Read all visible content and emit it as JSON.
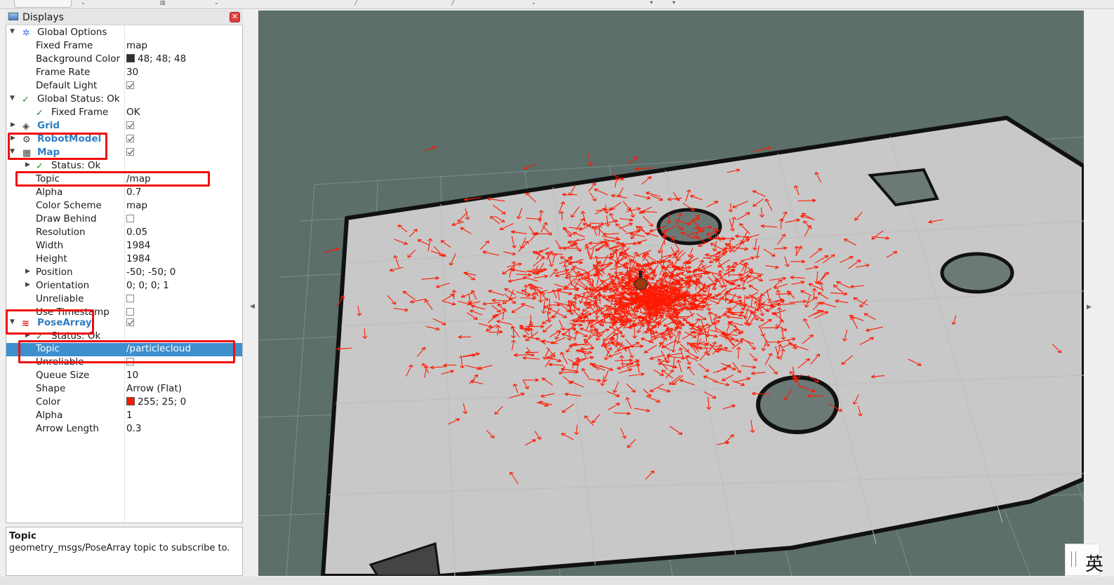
{
  "panel": {
    "title": "Displays",
    "close_label": "✕"
  },
  "rows": [
    {
      "name": "Global Options",
      "value": ""
    },
    {
      "name": "Fixed Frame",
      "value": "map"
    },
    {
      "name": "Background Color",
      "value": "48; 48; 48"
    },
    {
      "name": "Frame Rate",
      "value": "30"
    },
    {
      "name": "Default Light",
      "value": ""
    },
    {
      "name": "Global Status: Ok",
      "value": ""
    },
    {
      "name": "Fixed Frame",
      "value": "OK"
    },
    {
      "name": "Grid",
      "value": ""
    },
    {
      "name": "RobotModel",
      "value": ""
    },
    {
      "name": "Map",
      "value": ""
    },
    {
      "name": "Status: Ok",
      "value": ""
    },
    {
      "name": "Topic",
      "value": "/map"
    },
    {
      "name": "Alpha",
      "value": "0.7"
    },
    {
      "name": "Color Scheme",
      "value": "map"
    },
    {
      "name": "Draw Behind",
      "value": ""
    },
    {
      "name": "Resolution",
      "value": "0.05"
    },
    {
      "name": "Width",
      "value": "1984"
    },
    {
      "name": "Height",
      "value": "1984"
    },
    {
      "name": "Position",
      "value": "-50; -50; 0"
    },
    {
      "name": "Orientation",
      "value": "0; 0; 0; 1"
    },
    {
      "name": "Unreliable",
      "value": ""
    },
    {
      "name": "Use Timestamp",
      "value": ""
    },
    {
      "name": "PoseArray",
      "value": ""
    },
    {
      "name": "Status: Ok",
      "value": ""
    },
    {
      "name": "Topic",
      "value": "/particlecloud"
    },
    {
      "name": "Unreliable",
      "value": ""
    },
    {
      "name": "Queue Size",
      "value": "10"
    },
    {
      "name": "Shape",
      "value": "Arrow (Flat)"
    },
    {
      "name": "Color",
      "value": "255; 25; 0"
    },
    {
      "name": "Alpha",
      "value": "1"
    },
    {
      "name": "Arrow Length",
      "value": "0.3"
    }
  ],
  "checkboxes": {
    "default_light": true,
    "grid": true,
    "robotmodel": true,
    "map": true,
    "draw_behind": false,
    "unreliable_map": false,
    "use_timestamp": false,
    "posearray": true,
    "unreliable_pose": false
  },
  "colors": {
    "background_swatch": "#303030",
    "pose_color_swatch": "#ff1900",
    "highlight": "#f00e0e",
    "selection": "#3d8fce",
    "view_background": "#5c6f6a",
    "map_free": "#c8c8c8",
    "arrow": "#ff1900"
  },
  "description": {
    "title": "Topic",
    "text": "geometry_msgs/PoseArray topic to subscribe to."
  },
  "ime": {
    "char": "英"
  },
  "icons": {
    "global_options": "gear-icon",
    "grid": "grid-icon",
    "robotmodel": "robot-icon",
    "map": "map-icon",
    "posearray": "posearray-icon",
    "ok": "checkmark-icon"
  }
}
